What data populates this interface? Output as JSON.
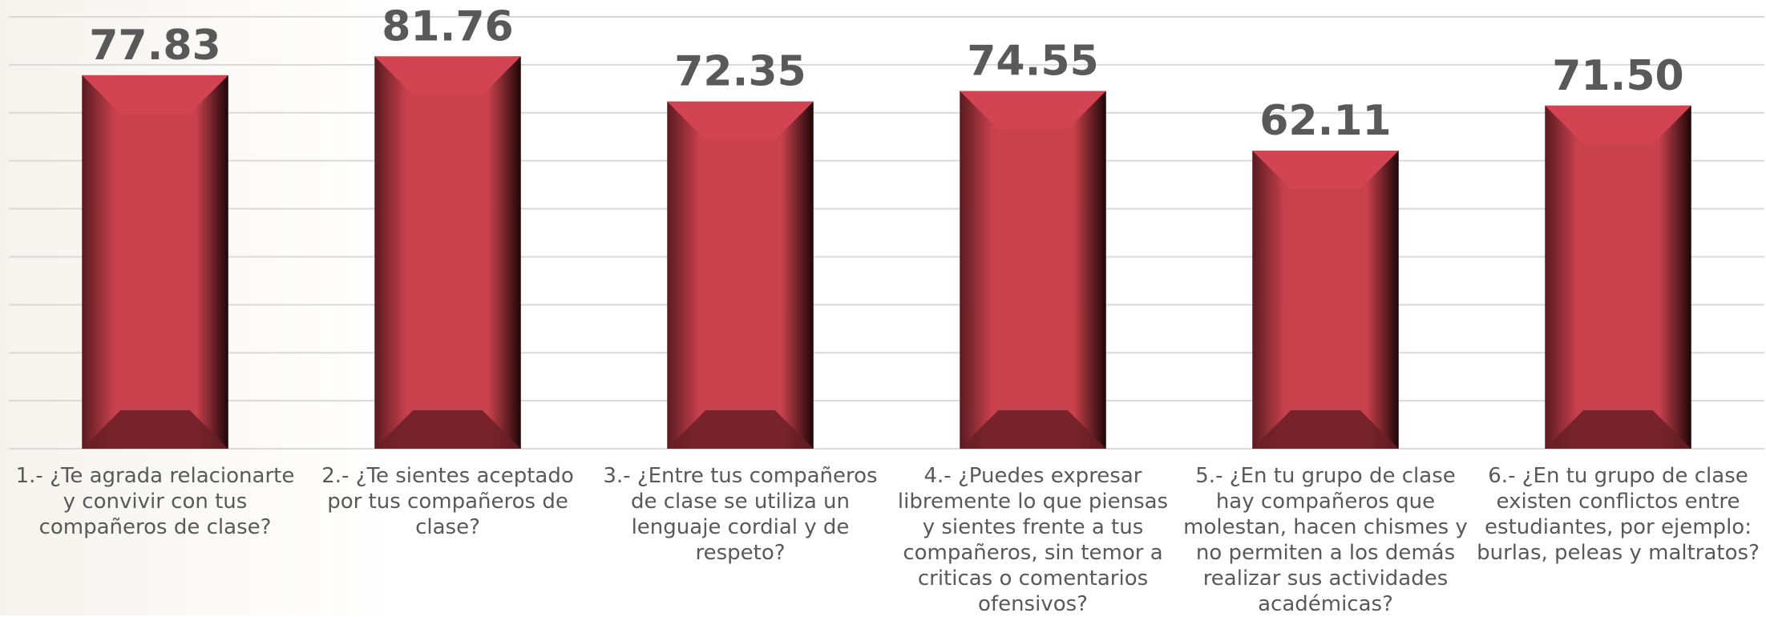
{
  "chart_data": {
    "type": "bar",
    "categories": [
      "1.- ¿Te agrada relacionarte y convivir con tus compañeros de clase?",
      "2.- ¿Te sientes aceptado por tus compañeros de clase?",
      "3.-  ¿Entre tus compañeros de clase se utiliza un lenguaje cordial y de respeto?",
      "4.-   ¿Puedes expresar libremente lo que piensas y sientes frente a tus compañeros, sin temor a criticas o comentarios ofensivos?",
      "5.-  ¿En tu grupo de clase hay compañeros que molestan, hacen chismes y no permiten a los demás realizar sus actividades académicas?",
      "6.-  ¿En tu grupo de clase existen conflictos entre estudiantes, por ejemplo: burlas, peleas y maltratos?"
    ],
    "values": [
      77.83,
      81.76,
      72.35,
      74.55,
      62.11,
      71.5
    ],
    "value_labels": [
      "77.83",
      "81.76",
      "72.35",
      "74.55",
      "62.11",
      "71.50"
    ],
    "color": "#c8414d",
    "ylim": [
      0,
      90
    ],
    "yticks": [
      0,
      10,
      20,
      30,
      40,
      50,
      60,
      70,
      80,
      90
    ],
    "grid": true
  }
}
